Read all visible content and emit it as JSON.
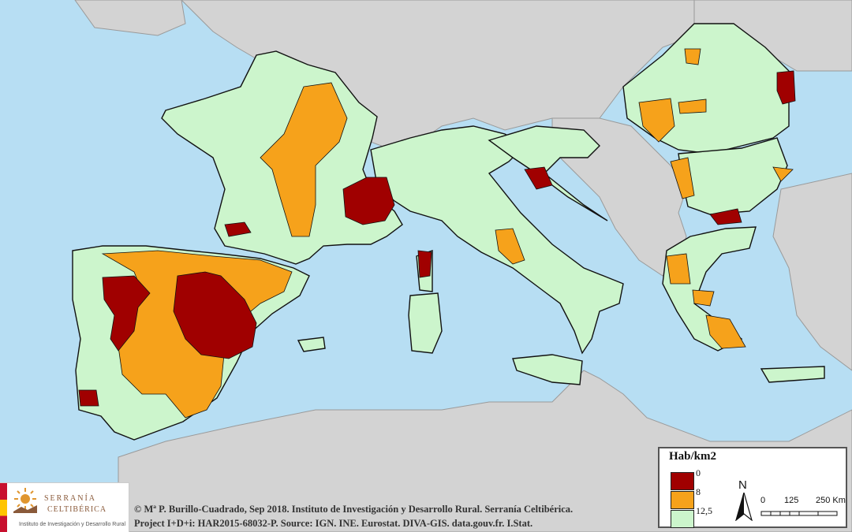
{
  "map": {
    "land_colors": {
      "sea": "#b7def3",
      "outside_study": "#d3d3d3",
      "study_base": "#ccf5cc",
      "border": "#8c8c8c"
    }
  },
  "legend": {
    "title": "Hab/km2",
    "classes": [
      {
        "label": "0",
        "color": "#a00000"
      },
      {
        "label": "8",
        "color": "#f6a21b"
      },
      {
        "label": "12,5",
        "color": "#ccf5cc"
      }
    ],
    "north_label": "N",
    "scale_labels": [
      "0",
      "125",
      "250 Km"
    ]
  },
  "logo": {
    "name_line1": "SERRANÍA",
    "name_line2": "CELTIBÉRICA",
    "subtitle": "Instituto de Investigación y Desarrollo Rural"
  },
  "credits": {
    "line1": "© Mª P. Burillo-Cuadrado, Sep 2018. Instituto de Investigación y Desarrollo Rural. Serranía Celtibérica.",
    "line2": "Project I+D+i: HAR2015-68032-P. Source: IGN. INE. Eurostat. DIVA-GIS. data.gouv.fr. I.Stat."
  }
}
